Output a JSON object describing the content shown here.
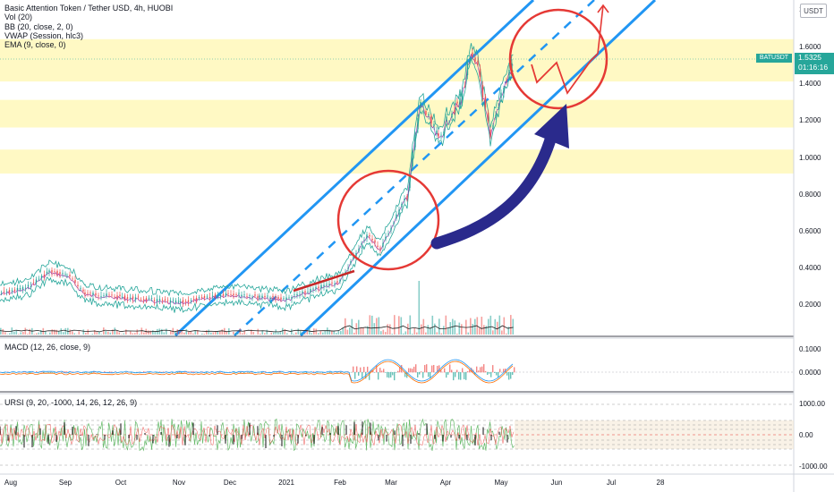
{
  "legend": {
    "title": "Basic Attention Token / Tether USD, 4h, HUOBI",
    "indicators": [
      "Vol (20)",
      "BB (20, close, 2, 0)",
      "VWAP (Session, hlc3)",
      "EMA (9, close, 0)"
    ]
  },
  "currency_button": "USDT",
  "ticker": "BATUSDT",
  "last_price": "1.5325",
  "countdown": "01:16:16",
  "macd_label": "MACD (12, 26, close, 9)",
  "ursi_label": "URSI (9, 20, -1000, 14, 26, 12, 26, 9)",
  "price_axis": [
    "1",
    "1.6000",
    "1.4000",
    "1.2000",
    "1.0000",
    "0.8000",
    "0.6000",
    "0.4000",
    "0.2000"
  ],
  "macd_axis": [
    "0.1000",
    "0.0000"
  ],
  "ursi_axis": [
    "1000.00",
    "0.00",
    "-1000.00"
  ],
  "time_axis": [
    "Aug",
    "Sep",
    "Oct",
    "Nov",
    "Dec",
    "2021",
    "Feb",
    "Mar",
    "Apr",
    "May",
    "Jun",
    "Jul",
    "28"
  ],
  "colors": {
    "zone": "#fff59d",
    "channel": "#2196f3",
    "circle": "#e53935",
    "arrow": "#2a2a8c",
    "up": "#26a69a",
    "down": "#ef5350",
    "bb": "#26a69a"
  },
  "chart_data": {
    "type": "candlestick",
    "symbol": "BATUSDT",
    "timeframe": "4h",
    "exchange": "HUOBI",
    "ylim": [
      0.1,
      1.8
    ],
    "last": 1.5325,
    "support_resistance_zones": [
      [
        1.41,
        1.64
      ],
      [
        1.16,
        1.31
      ],
      [
        0.91,
        1.04
      ]
    ],
    "price_path": [
      {
        "date": "Aug",
        "price": 0.26
      },
      {
        "date": "mid-Aug",
        "price": 0.29
      },
      {
        "date": "late-Aug",
        "price": 0.38
      },
      {
        "date": "Sep",
        "price": 0.36
      },
      {
        "date": "mid-Sep",
        "price": 0.26
      },
      {
        "date": "Oct",
        "price": 0.24
      },
      {
        "date": "Nov",
        "price": 0.21
      },
      {
        "date": "Dec",
        "price": 0.26
      },
      {
        "date": "late-Dec",
        "price": 0.24
      },
      {
        "date": "2021",
        "price": 0.23
      },
      {
        "date": "mid-Jan",
        "price": 0.28
      },
      {
        "date": "Feb",
        "price": 0.33
      },
      {
        "date": "mid-Feb",
        "price": 0.58
      },
      {
        "date": "late-Feb",
        "price": 0.5
      },
      {
        "date": "Mar",
        "price": 0.8
      },
      {
        "date": "early-Mar",
        "price": 1.3
      },
      {
        "date": "mid-Mar",
        "price": 1.1
      },
      {
        "date": "late-Mar",
        "price": 1.25
      },
      {
        "date": "Apr",
        "price": 1.3
      },
      {
        "date": "early-Apr",
        "price": 1.55
      },
      {
        "date": "mid-Apr",
        "price": 1.48
      },
      {
        "date": "late-Apr",
        "price": 1.1
      },
      {
        "date": "May",
        "price": 1.35
      },
      {
        "date": "early-May",
        "price": 1.5325
      }
    ]
  }
}
